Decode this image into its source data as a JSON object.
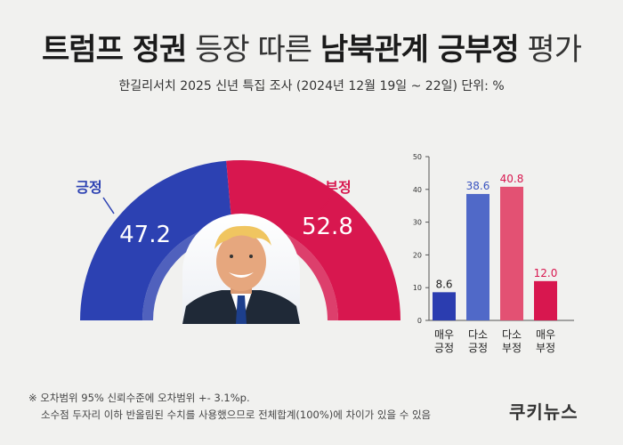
{
  "header": {
    "title_parts": [
      {
        "text": "트럼프 정권",
        "bold": true
      },
      {
        "text": " 등장 따른 ",
        "bold": false
      },
      {
        "text": "남북관계 긍부정",
        "bold": true
      },
      {
        "text": " 평가",
        "bold": false
      }
    ],
    "subtitle": "한길리서치 2025 신년 특집 조사 (2024년 12월 19일 ~ 22일) 단위: %"
  },
  "chart_data": [
    {
      "type": "pie",
      "subtype": "half-donut",
      "categories": [
        "긍정",
        "부정"
      ],
      "values": [
        47.2,
        52.8
      ],
      "value_labels": [
        "47.2",
        "52.8"
      ],
      "colors": [
        "#2c41b2",
        "#d8174f"
      ]
    },
    {
      "type": "bar",
      "categories": [
        [
          "매우",
          "긍정"
        ],
        [
          "다소",
          "긍정"
        ],
        [
          "다소",
          "부정"
        ],
        [
          "매우",
          "부정"
        ]
      ],
      "values": [
        8.6,
        38.6,
        40.8,
        12.0
      ],
      "value_labels": [
        "8.6",
        "38.6",
        "40.8",
        "12.0"
      ],
      "colors": [
        "#2b3db0",
        "#5069c8",
        "#e35173",
        "#d8174f"
      ],
      "label_colors": [
        "#222222",
        "#3a54c0",
        "#d8174f",
        "#d8174f"
      ],
      "ylim": [
        0,
        50
      ],
      "yticks": [
        "0",
        "10",
        "20",
        "30",
        "40",
        "50"
      ],
      "grid": false
    }
  ],
  "notes": [
    "※ 오차범위 95% 신뢰수준에 오차범위 +- 3.1%p.",
    "소수점 두자리 이하 반올림된 수치를 사용했으므로 전체합계(100%)에 차이가 있을 수 있음"
  ],
  "brand": "쿠키뉴스"
}
